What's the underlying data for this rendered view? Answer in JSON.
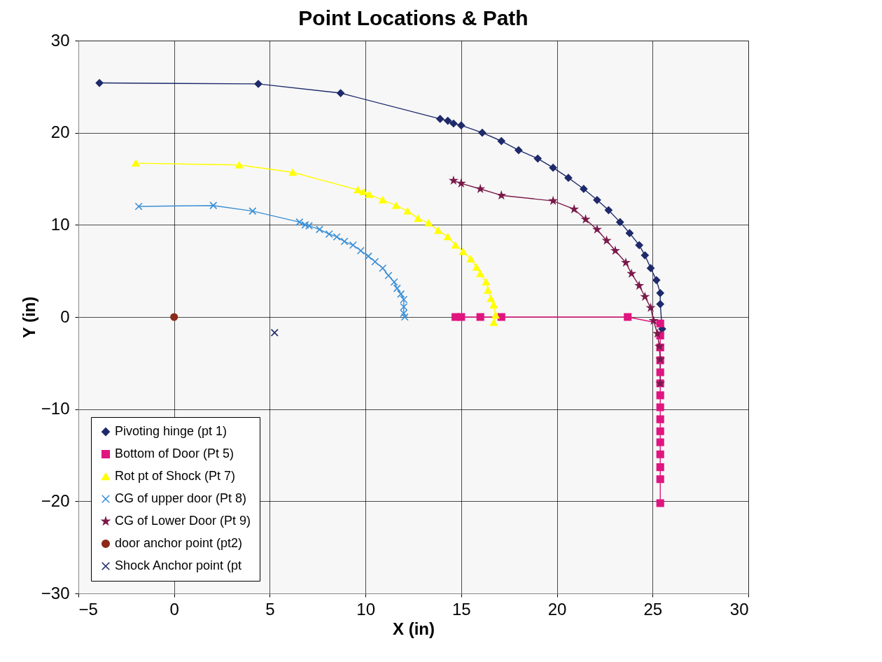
{
  "chart_data": {
    "type": "line",
    "title": "Point Locations & Path",
    "xlabel": "X (in)",
    "ylabel": "Y (in)",
    "xlim": [
      -5,
      30
    ],
    "ylim": [
      -30,
      30
    ],
    "xticks": [
      -5,
      0,
      5,
      10,
      15,
      20,
      25,
      30
    ],
    "yticks": [
      -30,
      -20,
      -10,
      0,
      10,
      20,
      30
    ],
    "grid": true,
    "legend": "bottom left",
    "line_style": "solid",
    "series": [
      {
        "name": "Pivoting hinge (pt 1)",
        "color": "#1f2a6b",
        "marker": "diamond",
        "x": [
          -3.9,
          4.4,
          8.7,
          13.9,
          14.3,
          14.6,
          15.0,
          16.1,
          17.1,
          18.0,
          19.0,
          19.8,
          20.6,
          21.4,
          22.1,
          22.7,
          23.3,
          23.8,
          24.3,
          24.6,
          24.9,
          25.2,
          25.4,
          25.4,
          25.5
        ],
        "values": [
          25.4,
          25.3,
          24.3,
          21.5,
          21.3,
          21.0,
          20.8,
          20.0,
          19.1,
          18.1,
          17.2,
          16.2,
          15.1,
          13.9,
          12.7,
          11.6,
          10.3,
          9.1,
          7.8,
          6.7,
          5.3,
          4.0,
          2.6,
          1.4,
          -1.3
        ]
      },
      {
        "name": "Bottom of Door (Pt 5)",
        "color": "#e0157f",
        "marker": "square",
        "x": [
          14.7,
          15.0,
          16.0,
          17.1,
          23.7,
          25.4,
          25.4,
          25.4,
          25.4,
          25.4,
          25.4,
          25.4,
          25.4,
          25.4,
          25.4,
          25.4,
          25.4,
          25.4,
          25.4,
          25.4
        ],
        "values": [
          0,
          0,
          0,
          0,
          0,
          -0.7,
          -2.0,
          -3.3,
          -4.7,
          -6.0,
          -7.2,
          -8.5,
          -9.8,
          -11.1,
          -12.4,
          -13.6,
          -14.9,
          -16.3,
          -17.6,
          -20.2
        ]
      },
      {
        "name": "Rot pt of Shock (Pt 7)",
        "color": "#ffff00",
        "marker": "triangle",
        "x": [
          -2.0,
          3.4,
          6.2,
          9.6,
          9.9,
          10.2,
          10.9,
          11.6,
          12.2,
          12.75,
          13.3,
          13.8,
          14.3,
          14.7,
          15.1,
          15.5,
          15.8,
          16.0,
          16.3,
          16.4,
          16.55,
          16.7,
          16.8,
          16.7
        ],
        "values": [
          16.7,
          16.5,
          15.7,
          13.8,
          13.6,
          13.3,
          12.7,
          12.1,
          11.5,
          10.7,
          10.2,
          9.4,
          8.7,
          7.8,
          7.1,
          6.3,
          5.4,
          4.7,
          3.8,
          2.9,
          2.0,
          1.3,
          0.2,
          -0.6
        ]
      },
      {
        "name": "CG of upper door (Pt 8)",
        "color": "#3a8fd6",
        "marker": "cross",
        "x": [
          -1.85,
          2.05,
          4.1,
          6.55,
          6.85,
          7.05,
          7.6,
          8.1,
          8.5,
          8.9,
          9.35,
          9.75,
          10.15,
          10.5,
          10.9,
          11.2,
          11.5,
          11.65,
          11.85,
          12.0,
          12.0,
          12.0,
          12.05
        ],
        "values": [
          12.0,
          12.1,
          11.5,
          10.3,
          10.0,
          9.9,
          9.5,
          9.0,
          8.7,
          8.2,
          7.8,
          7.2,
          6.6,
          6.0,
          5.3,
          4.5,
          3.8,
          3.1,
          2.5,
          1.9,
          1.1,
          0.4,
          0.0
        ]
      },
      {
        "name": "CG of Lower Door (Pt 9)",
        "color": "#7a1a4a",
        "marker": "star",
        "x": [
          14.6,
          15.0,
          16.0,
          17.1,
          19.8,
          20.9,
          21.5,
          22.1,
          22.6,
          23.05,
          23.6,
          23.9,
          24.3,
          24.6,
          24.9,
          25.05,
          25.25,
          25.35,
          25.4,
          25.4
        ],
        "values": [
          14.8,
          14.5,
          13.9,
          13.2,
          12.6,
          11.7,
          10.6,
          9.5,
          8.3,
          7.2,
          5.9,
          4.7,
          3.4,
          2.2,
          1.0,
          -0.4,
          -1.8,
          -3.2,
          -4.6,
          -7.2
        ]
      },
      {
        "name": "door anchor point (pt2)",
        "color": "#8b2a1a",
        "marker": "circle",
        "x": [
          0
        ],
        "values": [
          0
        ]
      },
      {
        "name": "Shock Anchor point (pt",
        "color": "#1f2a6b",
        "marker": "cross",
        "x": [
          5.25
        ],
        "values": [
          -1.7
        ]
      }
    ]
  }
}
